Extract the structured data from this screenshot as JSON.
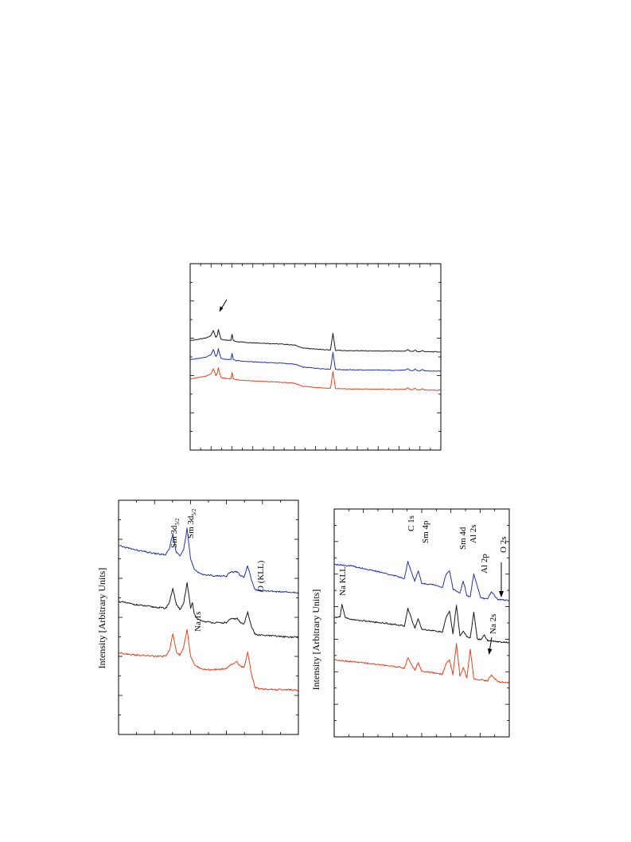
{
  "page": {
    "ylabel_mid": "Intensity [Arbitrary Units]",
    "ylabel_bottom": "Intensity [Arbitrary Units]"
  },
  "chart_data": [
    {
      "id": "survey",
      "type": "line",
      "title": "",
      "xlabel": "",
      "ylabel": "",
      "x_range": [
        0,
        100
      ],
      "grid": false,
      "legend": "none",
      "series": [
        {
          "color": "#1a1a1a",
          "offset": 2.0,
          "x": [
            0,
            6,
            8,
            9,
            10,
            10.6,
            11,
            12,
            14,
            16,
            16.5,
            17,
            18,
            22,
            30,
            38,
            42,
            44,
            45,
            48,
            50,
            54,
            56,
            57,
            58,
            60,
            65,
            75,
            86,
            87,
            88,
            89,
            90,
            91,
            92,
            93,
            94,
            100
          ],
          "y": [
            0.3,
            0.55,
            0.8,
            1.35,
            0.62,
            0.9,
            1.45,
            0.45,
            0.32,
            0.3,
            0.95,
            0.28,
            0.2,
            0.1,
            0.0,
            -0.1,
            -0.2,
            -0.4,
            -0.5,
            -0.55,
            -0.6,
            -0.68,
            -0.7,
            1.05,
            -0.72,
            -0.75,
            -0.78,
            -0.8,
            -0.82,
            -0.65,
            -0.84,
            -0.86,
            -0.7,
            -0.87,
            -0.88,
            -0.75,
            -0.88,
            -0.9
          ]
        },
        {
          "color": "#1f34a8",
          "offset": 0.0,
          "x": [
            0,
            6,
            8,
            9,
            10,
            10.6,
            11,
            12,
            14,
            16,
            16.5,
            17,
            18,
            22,
            30,
            38,
            42,
            44,
            45,
            48,
            50,
            54,
            56,
            57,
            58,
            60,
            65,
            75,
            86,
            87,
            88,
            89,
            90,
            91,
            92,
            93,
            94,
            100
          ],
          "y": [
            0.3,
            0.55,
            0.8,
            1.35,
            0.62,
            0.9,
            1.45,
            0.45,
            0.32,
            0.3,
            0.95,
            0.28,
            0.2,
            0.1,
            0.0,
            -0.1,
            -0.2,
            -0.4,
            -0.5,
            -0.55,
            -0.6,
            -0.68,
            -0.7,
            1.05,
            -0.72,
            -0.75,
            -0.78,
            -0.8,
            -0.82,
            -0.65,
            -0.84,
            -0.86,
            -0.7,
            -0.87,
            -0.88,
            -0.75,
            -0.88,
            -0.9
          ]
        },
        {
          "color": "#e8401c",
          "offset": -2.0,
          "x": [
            0,
            6,
            8,
            9,
            10,
            10.6,
            11,
            12,
            14,
            16,
            16.5,
            17,
            18,
            22,
            30,
            38,
            42,
            44,
            45,
            48,
            50,
            54,
            56,
            57,
            58,
            60,
            65,
            75,
            86,
            87,
            88,
            89,
            90,
            91,
            92,
            93,
            94,
            100
          ],
          "y": [
            0.3,
            0.55,
            0.8,
            1.35,
            0.62,
            0.9,
            1.45,
            0.45,
            0.32,
            0.3,
            0.95,
            0.28,
            0.2,
            0.1,
            0.0,
            -0.1,
            -0.2,
            -0.4,
            -0.5,
            -0.55,
            -0.6,
            -0.68,
            -0.7,
            1.05,
            -0.72,
            -0.75,
            -0.78,
            -0.8,
            -0.82,
            -0.65,
            -0.84,
            -0.86,
            -0.7,
            -0.87,
            -0.88,
            -0.75,
            -0.88,
            -0.9
          ]
        }
      ]
    },
    {
      "id": "sm3d",
      "type": "line",
      "title": "",
      "xlabel": "",
      "ylabel": "Intensity [Arbitrary Units]",
      "x_range": [
        0,
        100
      ],
      "grid": false,
      "legend": "none",
      "annotations": [
        "Sm 3d3/2",
        "Sm 3d5/2",
        "O (KLL)",
        "Na 1s"
      ],
      "series": [
        {
          "color": "#1f34a8",
          "offset": 2.2,
          "x": [
            0,
            10,
            20,
            26,
            28,
            30,
            32,
            34,
            36,
            38,
            40,
            42,
            44,
            48,
            54,
            60,
            62,
            66,
            68,
            70,
            72,
            74,
            76,
            78,
            82,
            88,
            94,
            100
          ],
          "y": [
            0.9,
            0.7,
            0.55,
            0.5,
            0.75,
            1.45,
            0.6,
            0.45,
            0.7,
            1.7,
            0.3,
            -0.15,
            -0.3,
            -0.4,
            -0.45,
            -0.45,
            -0.3,
            -0.25,
            -0.45,
            -0.5,
            0.0,
            -0.6,
            -1.05,
            -1.1,
            -1.12,
            -1.15,
            -1.18,
            -1.2
          ]
        },
        {
          "color": "#1a1a1a",
          "offset": 0.0,
          "x": [
            0,
            10,
            20,
            26,
            28,
            30,
            32,
            34,
            36,
            38,
            40,
            41,
            42,
            44,
            48,
            54,
            60,
            62,
            66,
            68,
            70,
            72,
            74,
            76,
            78,
            82,
            88,
            94,
            100
          ],
          "y": [
            0.6,
            0.45,
            0.35,
            0.3,
            0.55,
            1.2,
            0.45,
            0.25,
            0.5,
            1.45,
            0.3,
            0.55,
            0.05,
            -0.2,
            -0.3,
            -0.35,
            -0.35,
            -0.2,
            -0.15,
            -0.35,
            -0.4,
            0.15,
            -0.5,
            -0.85,
            -0.9,
            -0.92,
            -0.95,
            -0.98,
            -1.0
          ]
        },
        {
          "color": "#e8401c",
          "offset": -2.2,
          "x": [
            0,
            10,
            20,
            26,
            28,
            30,
            32,
            34,
            36,
            38,
            40,
            42,
            44,
            48,
            54,
            60,
            62,
            66,
            68,
            70,
            72,
            74,
            76,
            78,
            82,
            88,
            94,
            100
          ],
          "y": [
            0.5,
            0.4,
            0.35,
            0.35,
            0.6,
            1.35,
            0.55,
            0.4,
            0.7,
            1.55,
            0.35,
            0.0,
            -0.15,
            -0.25,
            -0.25,
            -0.2,
            -0.05,
            0.1,
            -0.1,
            -0.15,
            0.55,
            -0.4,
            -1.05,
            -1.1,
            -1.12,
            -1.15,
            -1.15,
            -1.18
          ]
        }
      ]
    },
    {
      "id": "lowbe",
      "type": "line",
      "title": "",
      "xlabel": "",
      "ylabel": "Intensity [Arbitrary Units]",
      "x_range": [
        0,
        100
      ],
      "grid": false,
      "legend": "none",
      "annotations": [
        "C 1s",
        "Sm 4p",
        "Sm 4d",
        "Al 2s",
        "Al 2p",
        "O 2s",
        "Na KLL",
        "Na 2s"
      ],
      "series": [
        {
          "color": "#1f34a8",
          "offset": 2.3,
          "x": [
            0,
            10,
            20,
            30,
            38,
            40,
            42,
            46,
            48,
            50,
            54,
            58,
            62,
            64,
            66,
            68,
            70,
            72,
            74,
            76,
            78,
            80,
            84,
            86,
            88,
            90,
            94,
            97,
            100
          ],
          "y": [
            0.9,
            0.8,
            0.6,
            0.4,
            0.2,
            0.15,
            1.05,
            0.0,
            0.55,
            -0.1,
            -0.15,
            -0.2,
            -0.3,
            0.35,
            0.55,
            -0.4,
            -0.5,
            -0.6,
            0.0,
            -0.75,
            -0.8,
            0.4,
            -0.85,
            -0.9,
            -0.92,
            -0.55,
            -0.95,
            -0.98,
            -1.0
          ]
        },
        {
          "color": "#1a1a1a",
          "offset": 0.0,
          "x": [
            0,
            3,
            4,
            6,
            10,
            20,
            30,
            38,
            40,
            42,
            46,
            48,
            50,
            54,
            58,
            62,
            64,
            66,
            68,
            70,
            72,
            74,
            76,
            78,
            80,
            82,
            84,
            86,
            88,
            90,
            94,
            97,
            100
          ],
          "y": [
            0.4,
            0.45,
            1.1,
            0.4,
            0.3,
            0.2,
            0.1,
            0.0,
            -0.05,
            0.9,
            -0.15,
            0.35,
            -0.2,
            -0.25,
            -0.3,
            -0.35,
            0.4,
            0.75,
            -0.45,
            1.05,
            -0.55,
            -0.3,
            -0.6,
            -0.65,
            0.7,
            -0.7,
            -0.75,
            -0.5,
            -0.8,
            -0.82,
            -0.85,
            -0.88,
            -0.9
          ]
        },
        {
          "color": "#e8401c",
          "offset": -2.3,
          "x": [
            0,
            10,
            20,
            30,
            38,
            40,
            42,
            46,
            48,
            50,
            54,
            58,
            62,
            64,
            66,
            68,
            70,
            72,
            74,
            76,
            78,
            80,
            84,
            88,
            90,
            94,
            97,
            100
          ],
          "y": [
            0.5,
            0.4,
            0.3,
            0.2,
            0.1,
            0.05,
            0.6,
            -0.05,
            0.35,
            -0.1,
            -0.15,
            -0.2,
            -0.25,
            0.3,
            0.5,
            -0.3,
            1.35,
            -0.35,
            0.1,
            -0.45,
            1.05,
            -0.5,
            -0.55,
            -0.6,
            -0.3,
            -0.65,
            -0.68,
            -0.7
          ]
        }
      ]
    }
  ]
}
